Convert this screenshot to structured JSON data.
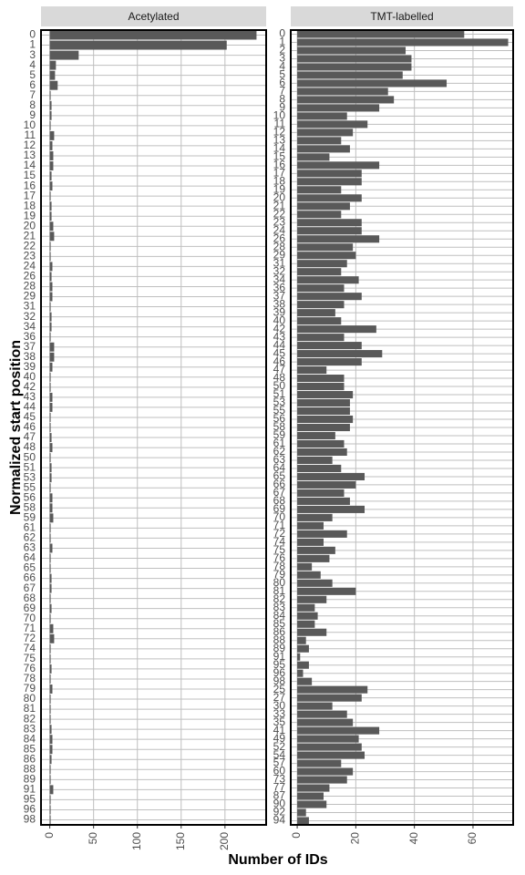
{
  "chart_data": {
    "type": "bar",
    "orientation": "horizontal",
    "color": "#595959",
    "grid": true,
    "x_label": "Number of IDs",
    "y_label": "Normalized start position",
    "panels": [
      {
        "title": "Acetylated",
        "categories": [
          "0",
          "1",
          "3",
          "4",
          "5",
          "6",
          "7",
          "8",
          "9",
          "10",
          "11",
          "12",
          "13",
          "14",
          "15",
          "16",
          "17",
          "18",
          "19",
          "20",
          "21",
          "22",
          "23",
          "24",
          "26",
          "28",
          "29",
          "31",
          "32",
          "34",
          "36",
          "37",
          "38",
          "39",
          "40",
          "42",
          "43",
          "44",
          "45",
          "46",
          "47",
          "48",
          "50",
          "51",
          "53",
          "55",
          "56",
          "58",
          "59",
          "61",
          "62",
          "63",
          "64",
          "65",
          "66",
          "67",
          "68",
          "69",
          "70",
          "71",
          "72",
          "74",
          "75",
          "76",
          "78",
          "79",
          "80",
          "81",
          "82",
          "83",
          "84",
          "85",
          "86",
          "88",
          "89",
          "91",
          "95",
          "96",
          "98"
        ],
        "values": [
          236,
          202,
          33,
          7,
          6,
          9,
          1,
          2,
          2,
          1,
          5,
          3,
          4,
          4,
          2,
          3,
          1,
          2,
          2,
          4,
          5,
          1,
          1,
          3,
          2,
          3,
          3,
          1,
          2,
          2,
          1,
          5,
          5,
          3,
          1,
          1,
          3,
          3,
          1,
          1,
          2,
          3,
          1,
          2,
          2,
          1,
          3,
          3,
          4,
          1,
          1,
          3,
          1,
          1,
          2,
          2,
          1,
          2,
          1,
          4,
          5,
          1,
          1,
          2,
          1,
          3,
          1,
          1,
          1,
          2,
          3,
          3,
          2,
          1,
          1,
          4,
          1,
          1,
          1
        ],
        "xlim": [
          -10,
          247
        ],
        "xticks": [
          0,
          50,
          100,
          150,
          200
        ]
      },
      {
        "title": "TMT-labelled",
        "categories": [
          "0",
          "1",
          "2",
          "3",
          "4",
          "5",
          "6",
          "7",
          "8",
          "9",
          "10",
          "11",
          "12",
          "13",
          "14",
          "15",
          "16",
          "17",
          "18",
          "19",
          "20",
          "21",
          "22",
          "23",
          "24",
          "26",
          "28",
          "29",
          "31",
          "32",
          "34",
          "36",
          "37",
          "38",
          "39",
          "40",
          "42",
          "43",
          "44",
          "45",
          "46",
          "47",
          "48",
          "50",
          "51",
          "53",
          "55",
          "56",
          "58",
          "59",
          "61",
          "62",
          "63",
          "64",
          "65",
          "66",
          "67",
          "68",
          "69",
          "70",
          "71",
          "72",
          "74",
          "75",
          "76",
          "78",
          "79",
          "80",
          "81",
          "82",
          "83",
          "84",
          "85",
          "86",
          "88",
          "89",
          "91",
          "95",
          "96",
          "98",
          "25",
          "27",
          "30",
          "33",
          "35",
          "41",
          "49",
          "52",
          "54",
          "57",
          "60",
          "73",
          "77",
          "87",
          "90",
          "92",
          "94"
        ],
        "values": [
          57,
          72,
          37,
          39,
          39,
          36,
          51,
          31,
          33,
          28,
          17,
          24,
          19,
          15,
          18,
          11,
          28,
          22,
          22,
          15,
          22,
          18,
          15,
          22,
          22,
          28,
          19,
          20,
          17,
          15,
          21,
          16,
          22,
          16,
          13,
          15,
          27,
          16,
          22,
          29,
          22,
          10,
          16,
          16,
          19,
          18,
          18,
          19,
          18,
          13,
          16,
          17,
          12,
          15,
          23,
          20,
          16,
          18,
          23,
          12,
          9,
          17,
          9,
          13,
          11,
          5,
          8,
          12,
          20,
          10,
          6,
          7,
          6,
          10,
          3,
          4,
          1,
          4,
          2,
          5,
          24,
          22,
          12,
          17,
          19,
          28,
          21,
          22,
          23,
          15,
          19,
          17,
          11,
          9,
          10,
          3,
          4
        ],
        "xlim": [
          -2.2,
          73.7
        ],
        "xticks": [
          0,
          20,
          40,
          60
        ]
      }
    ]
  }
}
